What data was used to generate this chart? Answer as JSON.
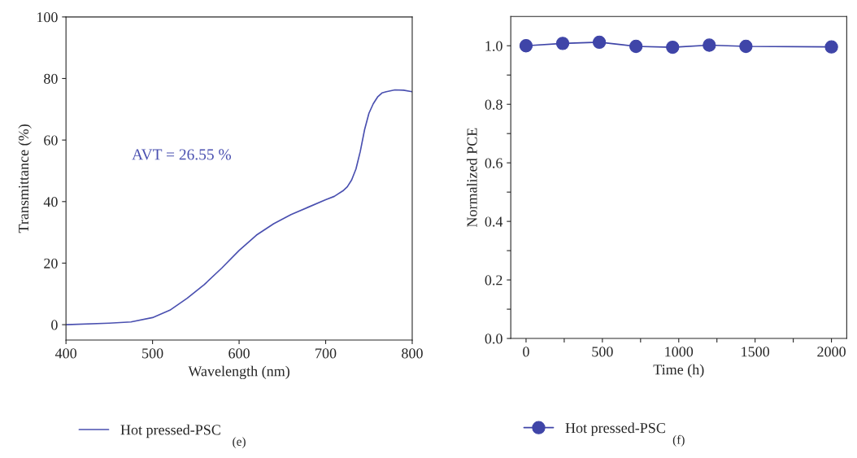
{
  "chart_data": [
    {
      "type": "line",
      "xlabel": "Wavelength (nm)",
      "ylabel": "Transmittance (%)",
      "x": [
        400,
        450,
        475,
        500,
        520,
        540,
        560,
        580,
        600,
        620,
        640,
        660,
        680,
        700,
        710,
        720,
        725,
        730,
        735,
        740,
        745,
        750,
        755,
        760,
        765,
        770,
        780,
        790,
        800
      ],
      "series": [
        {
          "name": "Hot pressed-PSC",
          "color": "#4a50b0",
          "values": [
            0,
            0.5,
            0.9,
            2.3,
            4.7,
            8.6,
            13.1,
            18.4,
            24.1,
            29.1,
            32.8,
            35.8,
            38.2,
            40.6,
            41.7,
            43.5,
            44.8,
            47,
            50.6,
            56.3,
            63.4,
            68.7,
            71.8,
            74,
            75.3,
            75.7,
            76.3,
            76.2,
            75.7
          ]
        }
      ],
      "xlim": [
        400,
        800
      ],
      "ylim": [
        -5,
        100
      ],
      "xticks": [
        400,
        500,
        600,
        700,
        800
      ],
      "yticks": [
        0,
        20,
        40,
        60,
        80,
        100
      ],
      "annotations": [
        "AVT = 26.55 %",
        "(e)"
      ],
      "legend": "bottom",
      "grid": false,
      "marker": "none",
      "line_style": "solid"
    },
    {
      "type": "line",
      "xlabel": "Time (h)",
      "ylabel": "Normalized PCE",
      "x": [
        0,
        240,
        480,
        720,
        960,
        1200,
        1440,
        2000
      ],
      "series": [
        {
          "name": "Hot pressed-PSC",
          "color": "#3f45a8",
          "values": [
            1.0,
            1.008,
            1.012,
            0.998,
            0.995,
            1.002,
            0.998,
            0.996
          ]
        }
      ],
      "xlim": [
        -100,
        2100
      ],
      "ylim": [
        0,
        1.1
      ],
      "xticks": [
        0,
        {
          "value": 250,
          "label": null
        },
        500,
        {
          "value": 750,
          "label": null
        },
        1000,
        {
          "value": 1250,
          "label": null
        },
        1500,
        {
          "value": 1750,
          "label": null
        },
        2000
      ],
      "yticks": [
        "0.0",
        {
          "value": 0.1,
          "label": null
        },
        {
          "value": 0.2,
          "label": "0.2"
        },
        {
          "value": 0.3,
          "label": null
        },
        {
          "value": 0.4,
          "label": "0.4"
        },
        {
          "value": 0.5,
          "label": null
        },
        {
          "value": 0.6,
          "label": "0.6"
        },
        {
          "value": 0.7,
          "label": null
        },
        {
          "value": 0.8,
          "label": "0.8"
        },
        {
          "value": 0.9,
          "label": null
        },
        {
          "value": 1.0,
          "label": "1.0"
        }
      ],
      "annotations": [
        "(f)"
      ],
      "legend": "bottom",
      "grid": false,
      "marker": "circle",
      "line_style": "solid"
    }
  ]
}
